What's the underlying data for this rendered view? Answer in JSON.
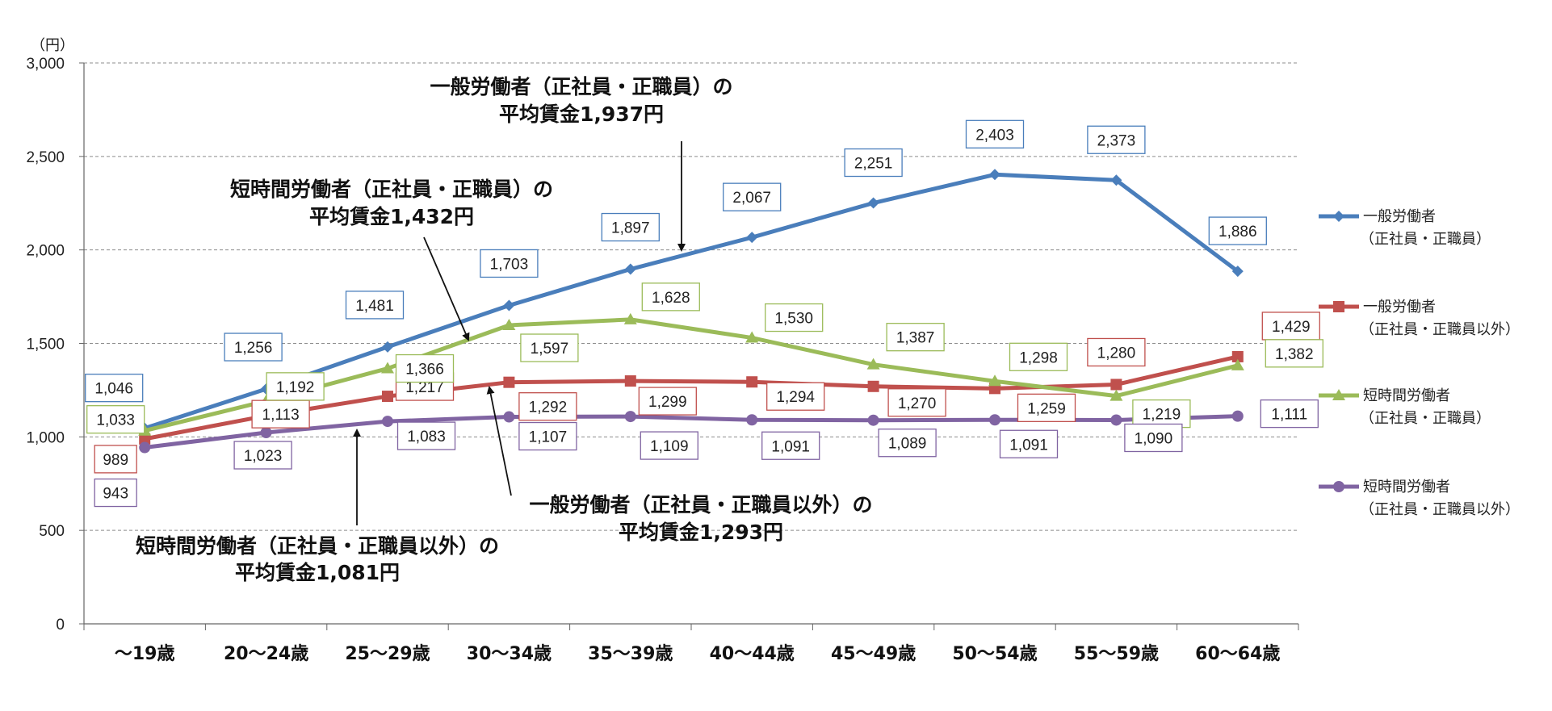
{
  "chart_data": {
    "type": "line",
    "unit_label": "（円）",
    "ylim": [
      0,
      3000
    ],
    "yticks": [
      "0",
      "500",
      "1,000",
      "1,500",
      "2,000",
      "2,500",
      "3,000"
    ],
    "categories": [
      "～19歳",
      "20～24歳",
      "25～29歳",
      "30～34歳",
      "35～39歳",
      "40～44歳",
      "45～49歳",
      "50～54歳",
      "55～59歳",
      "60～64歳"
    ],
    "grid": true,
    "legend_position": "right",
    "series": [
      {
        "name": "一般労働者",
        "name2": "（正社員・正職員）",
        "color": "#4a7ebb",
        "marker": "diamond",
        "values": [
          1046,
          1256,
          1481,
          1703,
          1897,
          2067,
          2251,
          2403,
          2373,
          1886
        ],
        "labels": [
          "1,046",
          "1,256",
          "1,481",
          "1,703",
          "1,897",
          "2,067",
          "2,251",
          "2,403",
          "2,373",
          "1,886"
        ]
      },
      {
        "name": "一般労働者",
        "name2": "（正社員・正職員以外）",
        "color": "#c0504d",
        "marker": "square",
        "values": [
          989,
          1113,
          1217,
          1292,
          1299,
          1294,
          1270,
          1259,
          1280,
          1429
        ],
        "labels": [
          "989",
          "1,113",
          "1,217",
          "1,292",
          "1,299",
          "1,294",
          "1,270",
          "1,259",
          "1,280",
          "1,429"
        ]
      },
      {
        "name": "短時間労働者",
        "name2": "（正社員・正職員）",
        "color": "#9bbb59",
        "marker": "triangle",
        "values": [
          1033,
          1192,
          1366,
          1597,
          1628,
          1530,
          1387,
          1298,
          1219,
          1382
        ],
        "labels": [
          "1,033",
          "1,192",
          "1,366",
          "1,597",
          "1,628",
          "1,530",
          "1,387",
          "1,298",
          "1,219",
          "1,382"
        ]
      },
      {
        "name": "短時間労働者",
        "name2": "（正社員・正職員以外）",
        "color": "#8064a2",
        "marker": "circle",
        "values": [
          943,
          1023,
          1083,
          1107,
          1109,
          1091,
          1089,
          1091,
          1090,
          1111
        ],
        "labels": [
          "943",
          "1,023",
          "1,083",
          "1,107",
          "1,109",
          "1,091",
          "1,089",
          "1,091",
          "1,090",
          "1,111"
        ]
      }
    ],
    "annotations": [
      {
        "line1": "一般労働者（正社員・正職員）の",
        "line2": "平均賃金1,937円"
      },
      {
        "line1": "短時間労働者（正社員・正職員）の",
        "line2": "平均賃金1,432円"
      },
      {
        "line1": "一般労働者（正社員・正職員以外）の",
        "line2": "平均賃金1,293円"
      },
      {
        "line1": "短時間労働者（正社員・正職員以外）の",
        "line2": "平均賃金1,081円"
      }
    ]
  }
}
